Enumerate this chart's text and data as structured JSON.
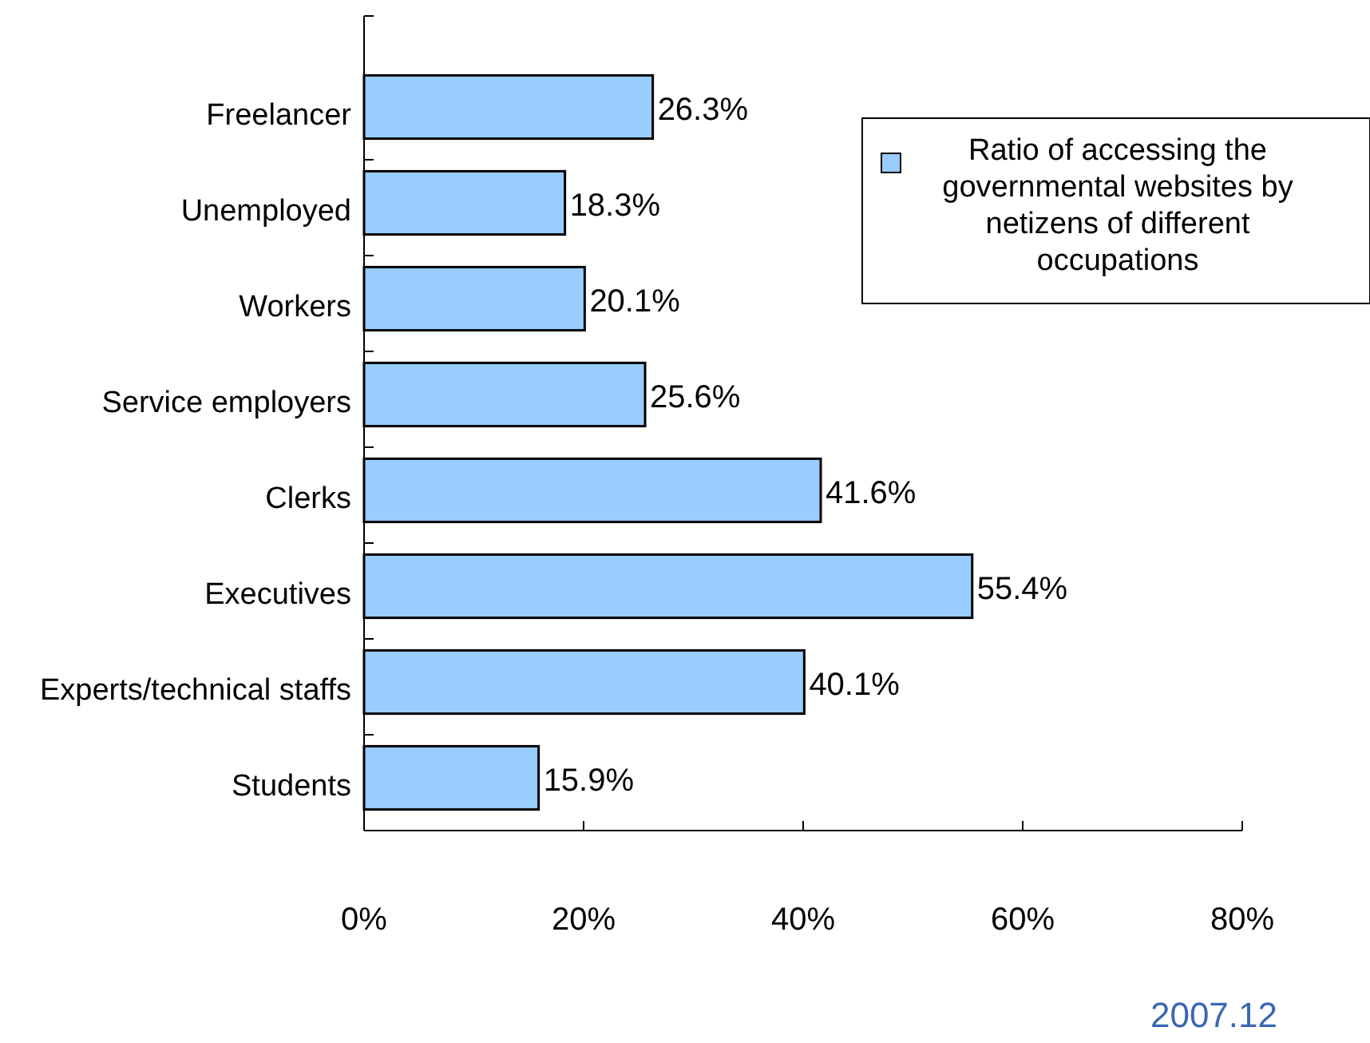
{
  "chart_data": {
    "type": "bar",
    "orientation": "horizontal",
    "categories": [
      "Freelancer",
      "Unemployed",
      "Workers",
      "Service employers",
      "Clerks",
      "Executives",
      "Experts/technical staffs",
      "Students"
    ],
    "series": [
      {
        "name": "Ratio of accessing the governmental websites by netizens of different occupations",
        "color": "#99ccff",
        "values": [
          26.3,
          18.3,
          20.1,
          25.6,
          41.6,
          55.4,
          40.1,
          15.9
        ],
        "value_labels": [
          "26.3%",
          "18.3%",
          "20.1%",
          "25.6%",
          "41.6%",
          "55.4%",
          "40.1%",
          "15.9%"
        ]
      }
    ],
    "xlim": [
      0,
      80
    ],
    "xticks": [
      {
        "value": 0,
        "label": "0%"
      },
      {
        "value": 20,
        "label": "20%"
      },
      {
        "value": 40,
        "label": "40%"
      },
      {
        "value": 60,
        "label": "60%"
      },
      {
        "value": 80,
        "label": "80%"
      }
    ],
    "legend": "top right",
    "grid": false,
    "annotations": [
      "2007.12"
    ]
  }
}
